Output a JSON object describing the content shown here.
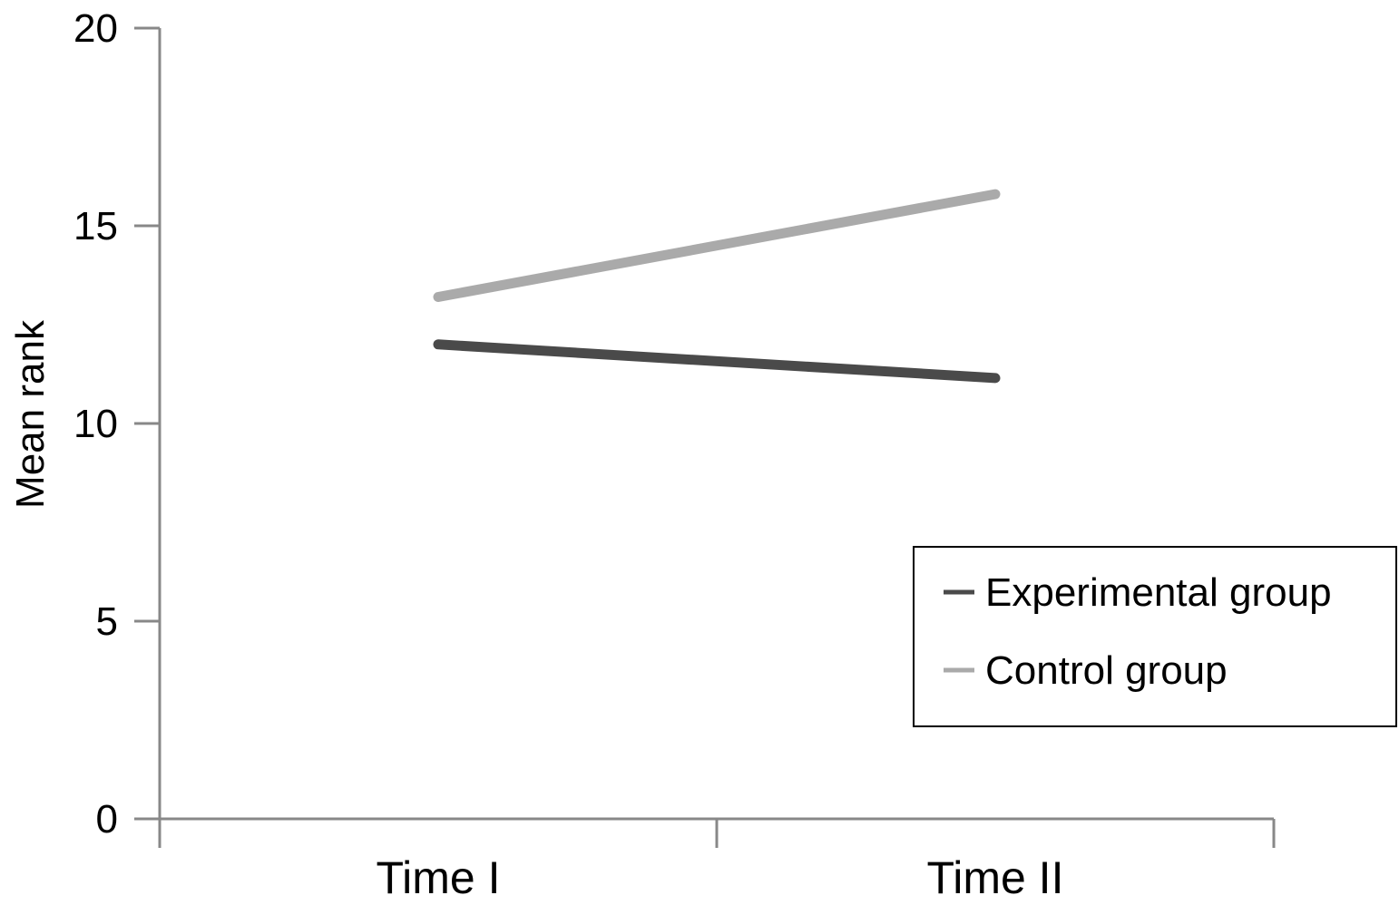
{
  "chart_data": {
    "type": "line",
    "title": "",
    "xlabel": "",
    "ylabel": "Mean rank",
    "categories": [
      "Time I",
      "Time II"
    ],
    "ylim": [
      0,
      20
    ],
    "yticks": [
      0,
      5,
      10,
      15,
      20
    ],
    "grid": false,
    "legend_position": "right",
    "series": [
      {
        "name": "Experimental group",
        "values": [
          12.0,
          11.15
        ],
        "color": "#4a4a4a"
      },
      {
        "name": "Control group",
        "values": [
          13.2,
          15.8
        ],
        "color": "#aaaaaa"
      }
    ]
  }
}
